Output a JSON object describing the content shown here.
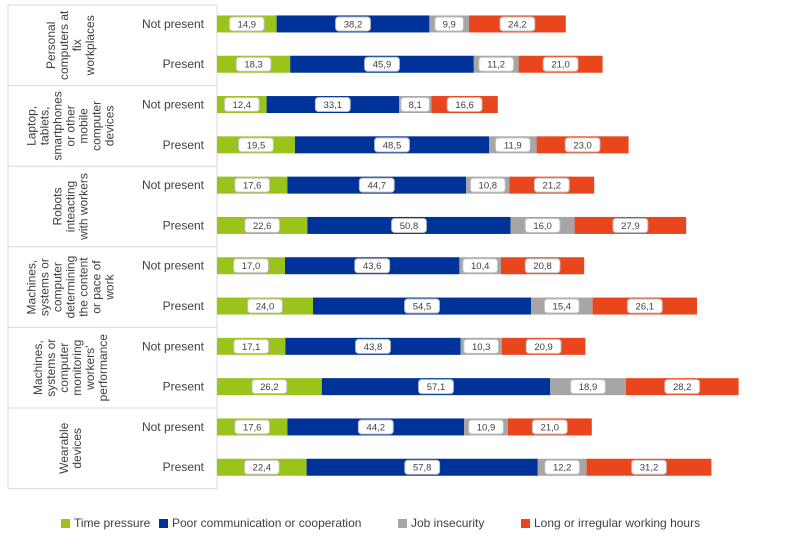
{
  "colors": {
    "time_pressure": "#9ac31c",
    "poor_communication": "#003399",
    "job_insecurity": "#a6a6a6",
    "long_hours": "#e9461d"
  },
  "chart_data": {
    "type": "bar",
    "orientation": "horizontal",
    "stacked": true,
    "title": "",
    "xlabel": "",
    "ylabel": "",
    "grid": false,
    "legend_position": "bottom",
    "series": [
      {
        "name": "Time pressure",
        "color": "#9ac31c",
        "values": [
          14.9,
          18.3,
          12.4,
          19.5,
          17.6,
          22.6,
          17.0,
          24.0,
          17.1,
          26.2,
          17.6,
          22.4
        ]
      },
      {
        "name": "Poor communication or cooperation",
        "color": "#003399",
        "values": [
          38.2,
          45.9,
          33.1,
          48.5,
          44.7,
          50.8,
          43.6,
          54.5,
          43.8,
          57.1,
          44.2,
          57.8
        ]
      },
      {
        "name": "Job insecurity",
        "color": "#a6a6a6",
        "values": [
          9.9,
          11.2,
          8.1,
          11.9,
          10.8,
          16.0,
          10.4,
          15.4,
          10.3,
          18.9,
          10.9,
          12.2
        ]
      },
      {
        "name": "Long or irregular working hours",
        "color": "#e9461d",
        "values": [
          24.2,
          21.0,
          16.6,
          23.0,
          21.2,
          27.9,
          20.8,
          26.1,
          20.9,
          28.2,
          21.0,
          31.2
        ]
      }
    ],
    "value_labels": [
      [
        "14,9",
        "38,2",
        "9,9",
        "24,2"
      ],
      [
        "18,3",
        "45,9",
        "11,2",
        "21,0"
      ],
      [
        "12,4",
        "33,1",
        "8,1",
        "16,6"
      ],
      [
        "19,5",
        "48,5",
        "11,9",
        "23,0"
      ],
      [
        "17,6",
        "44,7",
        "10,8",
        "21,2"
      ],
      [
        "22,6",
        "50,8",
        "16,0",
        "27,9"
      ],
      [
        "17,0",
        "43,6",
        "10,4",
        "20,8"
      ],
      [
        "24,0",
        "54,5",
        "15,4",
        "26,1"
      ],
      [
        "17,1",
        "43,8",
        "10,3",
        "20,9"
      ],
      [
        "26,2",
        "57,1",
        "18,9",
        "28,2"
      ],
      [
        "17,6",
        "44,2",
        "10,9",
        "21,0"
      ],
      [
        "22,4",
        "57,8",
        "12,2",
        "31,2"
      ]
    ],
    "groups": [
      {
        "label": "Personal computers at fix workplaces",
        "label_lines": [
          "Personal",
          "computers at",
          "fix",
          "workplaces"
        ],
        "rows": [
          "Not present",
          "Present"
        ]
      },
      {
        "label": "Laptop, tablets, smartphones or other mobile computer devices",
        "label_lines": [
          "Laptop,",
          "tablets,",
          "smartphones",
          "or other",
          "mobile",
          "computer",
          "devices"
        ],
        "rows": [
          "Not present",
          "Present"
        ]
      },
      {
        "label": "Robots inteacting with workers",
        "label_lines": [
          "Robots",
          "inteacting",
          "with workers"
        ],
        "rows": [
          "Not present",
          "Present"
        ]
      },
      {
        "label": "Machines, systems or computer determining the content or pace of work",
        "label_lines": [
          "Machines,",
          "systems or",
          "computer",
          "determining",
          "the content",
          "or pace of",
          "work"
        ],
        "rows": [
          "Not present",
          "Present"
        ]
      },
      {
        "label": "Machines, systems or computer monitoring workers' performance",
        "label_lines": [
          "Machines,",
          "systems or",
          "computer",
          "monitoring",
          "workers'",
          "performance"
        ],
        "rows": [
          "Not present",
          "Present"
        ]
      },
      {
        "label": "Wearable devices",
        "label_lines": [
          "Wearable",
          "devices"
        ],
        "rows": [
          "Not present",
          "Present"
        ]
      }
    ]
  },
  "legend": {
    "items": [
      {
        "label": "Time pressure",
        "color": "#9ac31c"
      },
      {
        "label": "Poor communication or cooperation",
        "color": "#003399"
      },
      {
        "label": "Job insecurity",
        "color": "#a6a6a6"
      },
      {
        "label": "Long or irregular working hours",
        "color": "#e9461d"
      }
    ]
  }
}
